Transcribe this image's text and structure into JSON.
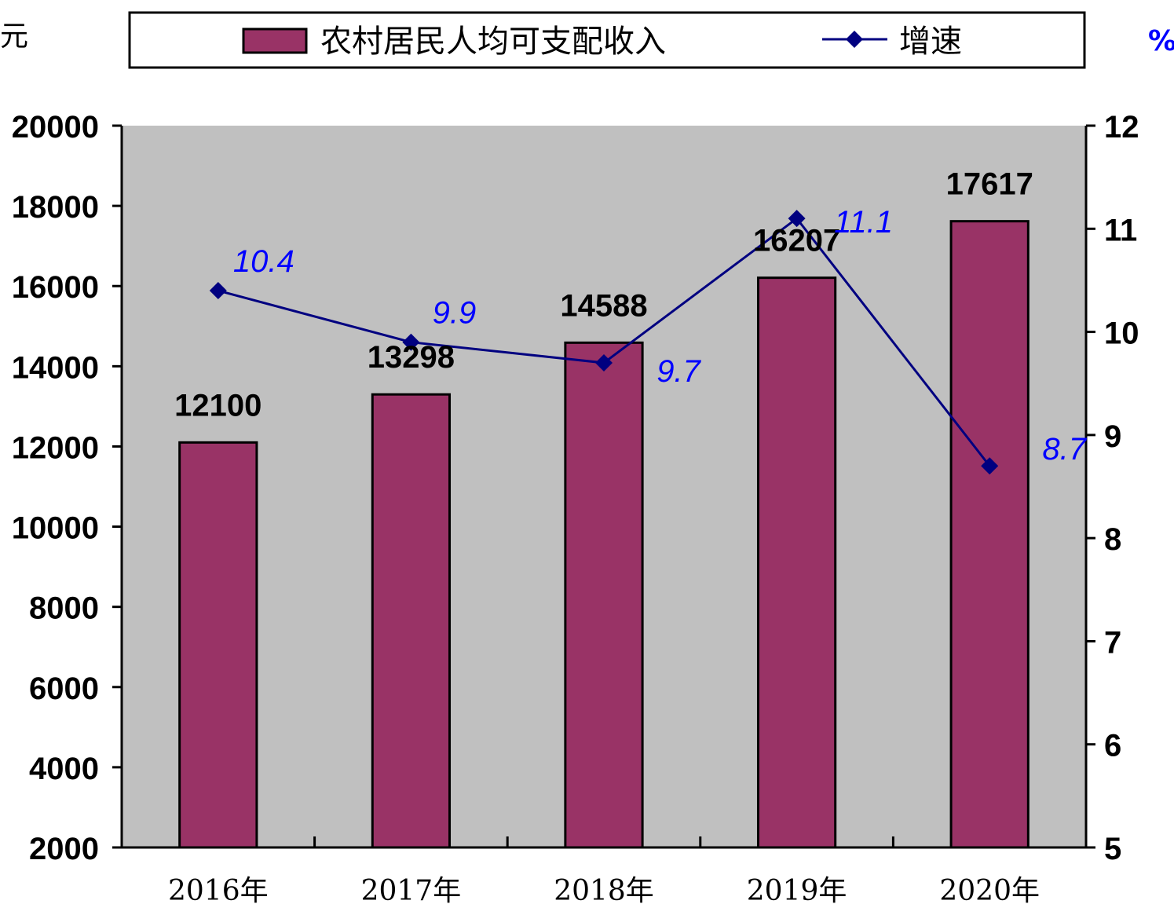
{
  "chart_data": {
    "type": "bar",
    "categories": [
      "2016年",
      "2017年",
      "2018年",
      "2019年",
      "2020年"
    ],
    "series": [
      {
        "name": "农村居民人均可支配收入",
        "type": "bar",
        "axis": "left",
        "values": [
          12100,
          13298,
          14588,
          16207,
          17617
        ],
        "color": "#993366"
      },
      {
        "name": "增速",
        "type": "line",
        "axis": "right",
        "values": [
          10.4,
          9.9,
          9.7,
          11.1,
          8.7
        ],
        "color": "#000080",
        "label_color": "#0000FF"
      }
    ],
    "y_left": {
      "unit": "元",
      "min": 2000,
      "max": 20000,
      "ticks": [
        2000,
        4000,
        6000,
        8000,
        10000,
        12000,
        14000,
        16000,
        18000,
        20000
      ]
    },
    "y_right": {
      "unit": "%",
      "min": 5,
      "max": 12,
      "ticks": [
        5,
        6,
        7,
        8,
        9,
        10,
        11,
        12
      ]
    },
    "plot_background": "#C0C0C0",
    "legend_position": "top"
  }
}
